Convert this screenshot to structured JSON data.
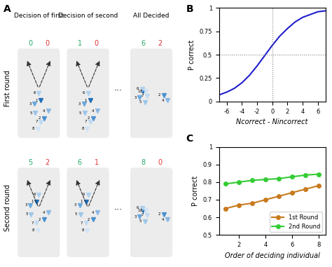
{
  "panel_labels": [
    "A",
    "B",
    "C"
  ],
  "diagram": {
    "columns": [
      "Decision of first",
      "Decision of second",
      "All Decided"
    ],
    "ellipsis": "...",
    "agents": [
      "1",
      "2",
      "3",
      "4",
      "5",
      "6",
      "7",
      "8"
    ],
    "rows": [
      {
        "label": "First round",
        "counts": [
          {
            "correct": 0,
            "incorrect": 0
          },
          {
            "correct": 1,
            "incorrect": 0
          },
          {
            "correct": 6,
            "incorrect": 2
          }
        ]
      },
      {
        "label": "Second round",
        "counts": [
          {
            "correct": 5,
            "incorrect": 2
          },
          {
            "correct": 6,
            "incorrect": 1
          },
          {
            "correct": 8,
            "incorrect": 0
          }
        ]
      }
    ]
  },
  "chart_data": [
    {
      "type": "line",
      "xlabel": "Ncorrect - Nincorrect",
      "ylabel": "P correct",
      "x": [
        -7,
        -6,
        -5,
        -4,
        -3,
        -2,
        -1,
        0,
        1,
        2,
        3,
        4,
        5,
        6,
        7
      ],
      "values": [
        0.07,
        0.1,
        0.14,
        0.2,
        0.28,
        0.38,
        0.49,
        0.6,
        0.7,
        0.78,
        0.85,
        0.9,
        0.93,
        0.96,
        0.97
      ],
      "color": "#1f1fcc",
      "xlim": [
        -7,
        7
      ],
      "xticks": [
        -6,
        -4,
        -2,
        0,
        2,
        4,
        6
      ],
      "ylim": [
        0,
        1
      ],
      "yticks": [
        0,
        0.25,
        0.5,
        0.75,
        1
      ],
      "hlines": [
        0.5
      ],
      "vlines": [
        0
      ]
    },
    {
      "type": "line",
      "xlabel": "Order of deciding individual",
      "ylabel": "P correct",
      "x": [
        1,
        2,
        3,
        4,
        5,
        6,
        7,
        8
      ],
      "series": [
        {
          "name": "1st Round",
          "color": "#c87a1e",
          "marker": "o",
          "values": [
            0.65,
            0.67,
            0.68,
            0.7,
            0.72,
            0.74,
            0.76,
            0.78
          ]
        },
        {
          "name": "2nd Round",
          "color": "#33cc33",
          "marker": "o",
          "values": [
            0.79,
            0.8,
            0.81,
            0.815,
            0.82,
            0.83,
            0.84,
            0.845
          ]
        }
      ],
      "xlim": [
        0.5,
        8.5
      ],
      "xticks": [
        2,
        4,
        6,
        8
      ],
      "ylim": [
        0.5,
        1
      ],
      "yticks": [
        0.5,
        0.6,
        0.7,
        0.8,
        0.9,
        1
      ],
      "legend": "lower right"
    }
  ]
}
